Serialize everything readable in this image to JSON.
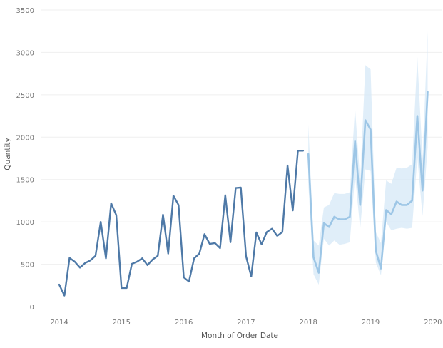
{
  "chart_data": {
    "type": "line",
    "title": "",
    "xlabel": "Month of Order Date",
    "ylabel": "Quantity",
    "ylim": [
      0,
      3500
    ],
    "y_ticks": [
      0,
      500,
      1000,
      1500,
      2000,
      2500,
      3000,
      3500
    ],
    "x_ticks": [
      "2014",
      "2015",
      "2016",
      "2017",
      "2018",
      "2019",
      "2020"
    ],
    "grid": true,
    "legend": "none",
    "colors": {
      "actual": "#4e79a7",
      "forecast": "#9dc6e6",
      "band": "#d6e8f7"
    },
    "series": [
      {
        "type": "actual",
        "x": [
          "2014-01",
          "2014-02",
          "2014-03",
          "2014-04",
          "2014-05",
          "2014-06",
          "2014-07",
          "2014-08",
          "2014-09",
          "2014-10",
          "2014-11",
          "2014-12",
          "2015-01",
          "2015-02",
          "2015-03",
          "2015-04",
          "2015-05",
          "2015-06",
          "2015-07",
          "2015-08",
          "2015-09",
          "2015-10",
          "2015-11",
          "2015-12",
          "2016-01",
          "2016-02",
          "2016-03",
          "2016-04",
          "2016-05",
          "2016-06",
          "2016-07",
          "2016-08",
          "2016-09",
          "2016-10",
          "2016-11",
          "2016-12",
          "2017-01",
          "2017-02",
          "2017-03",
          "2017-04",
          "2017-05",
          "2017-06",
          "2017-07",
          "2017-08",
          "2017-09",
          "2017-10",
          "2017-11",
          "2017-12"
        ],
        "values": [
          260,
          130,
          575,
          530,
          460,
          515,
          545,
          600,
          1000,
          570,
          1220,
          1080,
          220,
          220,
          505,
          530,
          570,
          490,
          555,
          600,
          1085,
          625,
          1310,
          1200,
          345,
          295,
          570,
          625,
          855,
          740,
          750,
          690,
          1315,
          760,
          1400,
          1405,
          595,
          355,
          875,
          735,
          880,
          920,
          835,
          880,
          1665,
          1135,
          1840,
          1840
        ]
      },
      {
        "type": "forecast",
        "x": [
          "2018-01",
          "2018-02",
          "2018-03",
          "2018-04",
          "2018-05",
          "2018-06",
          "2018-07",
          "2018-08",
          "2018-09",
          "2018-10",
          "2018-11",
          "2018-12",
          "2019-01",
          "2019-02",
          "2019-03",
          "2019-04",
          "2019-05",
          "2019-06",
          "2019-07",
          "2019-08",
          "2019-09",
          "2019-10",
          "2019-11",
          "2019-12"
        ],
        "values": [
          1800,
          580,
          400,
          985,
          940,
          1060,
          1030,
          1030,
          1060,
          1950,
          1200,
          2200,
          2090,
          660,
          450,
          1140,
          1090,
          1240,
          1200,
          1200,
          1250,
          2250,
          1370,
          2535
        ],
        "lower": [
          1450,
          380,
          260,
          800,
          720,
          780,
          730,
          740,
          760,
          1550,
          920,
          1620,
          1600,
          520,
          370,
          1000,
          900,
          920,
          930,
          920,
          930,
          1760,
          1070,
          1880
        ],
        "upper": [
          2150,
          780,
          720,
          1170,
          1200,
          1340,
          1330,
          1330,
          1350,
          2350,
          1480,
          2850,
          2800,
          880,
          750,
          1490,
          1450,
          1640,
          1630,
          1640,
          1680,
          2950,
          1750,
          3250
        ]
      }
    ]
  }
}
